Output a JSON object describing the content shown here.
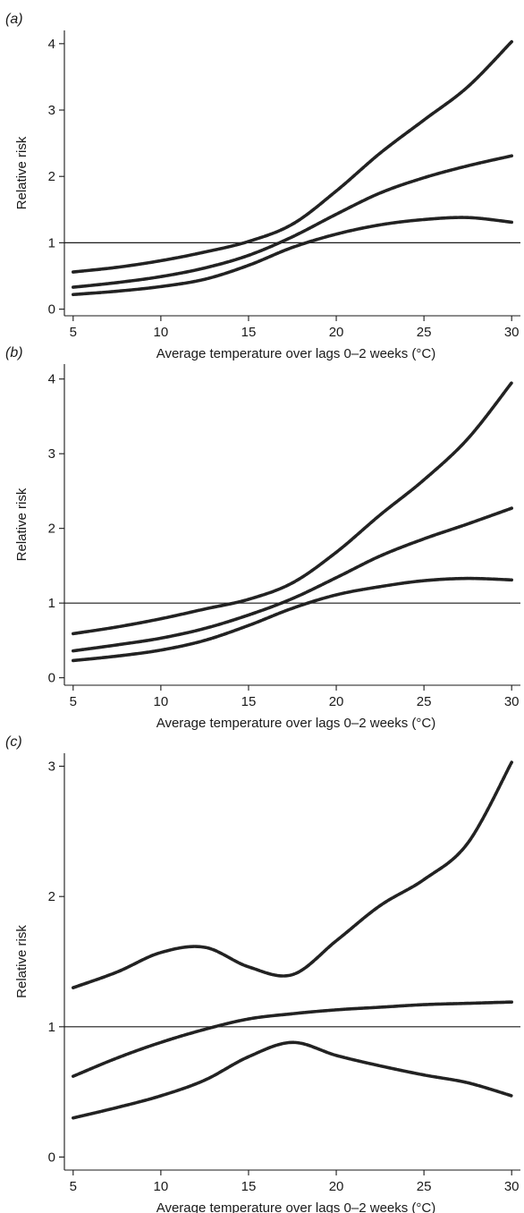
{
  "chart_data": [
    {
      "type": "line",
      "panel_label": "(a)",
      "xlabel": "Average temperature over lags 0–2 weeks (°C)",
      "ylabel": "Relative risk",
      "xlim": [
        4.5,
        30.5
      ],
      "ylim": [
        -0.1,
        4.2
      ],
      "x_ticks": [
        5,
        10,
        15,
        20,
        25,
        30
      ],
      "y_ticks": [
        0,
        1,
        2,
        3,
        4
      ],
      "reference_line_y": 1,
      "grid": false,
      "x": [
        5,
        7.5,
        10,
        12.5,
        15,
        17.5,
        20,
        22.5,
        25,
        27.5,
        30
      ],
      "series": [
        {
          "values": [
            0.56,
            0.63,
            0.73,
            0.86,
            1.02,
            1.28,
            1.78,
            2.35,
            2.85,
            3.35,
            4.03
          ]
        },
        {
          "values": [
            0.33,
            0.4,
            0.49,
            0.62,
            0.81,
            1.09,
            1.43,
            1.75,
            1.98,
            2.16,
            2.31
          ]
        },
        {
          "values": [
            0.22,
            0.27,
            0.34,
            0.45,
            0.66,
            0.93,
            1.13,
            1.27,
            1.35,
            1.38,
            1.31
          ]
        }
      ]
    },
    {
      "type": "line",
      "panel_label": "(b)",
      "xlabel": "Average temperature over lags 0–2 weeks (°C)",
      "ylabel": "Relative risk",
      "xlim": [
        4.5,
        30.5
      ],
      "ylim": [
        -0.1,
        4.2
      ],
      "x_ticks": [
        5,
        10,
        15,
        20,
        25,
        30
      ],
      "y_ticks": [
        0,
        1,
        2,
        3,
        4
      ],
      "reference_line_y": 1,
      "grid": false,
      "x": [
        5,
        7.5,
        10,
        12.5,
        15,
        17.5,
        20,
        22.5,
        25,
        27.5,
        30
      ],
      "series": [
        {
          "values": [
            0.59,
            0.68,
            0.79,
            0.92,
            1.05,
            1.27,
            1.68,
            2.18,
            2.65,
            3.2,
            3.95
          ]
        },
        {
          "values": [
            0.36,
            0.44,
            0.53,
            0.66,
            0.84,
            1.06,
            1.34,
            1.63,
            1.86,
            2.06,
            2.27
          ]
        },
        {
          "values": [
            0.23,
            0.29,
            0.37,
            0.5,
            0.7,
            0.93,
            1.11,
            1.22,
            1.3,
            1.33,
            1.31
          ]
        }
      ]
    },
    {
      "type": "line",
      "panel_label": "(c)",
      "xlabel": "Average temperature over lags 0–2 weeks (°C)",
      "ylabel": "Relative risk",
      "xlim": [
        4.5,
        30.5
      ],
      "ylim": [
        -0.1,
        3.1
      ],
      "x_ticks": [
        5,
        10,
        15,
        20,
        25,
        30
      ],
      "y_ticks": [
        0,
        1,
        2,
        3
      ],
      "reference_line_y": 1,
      "grid": false,
      "x": [
        5,
        7.5,
        10,
        12.5,
        15,
        17.5,
        20,
        22.5,
        25,
        27.5,
        30
      ],
      "series": [
        {
          "values": [
            1.3,
            1.42,
            1.57,
            1.61,
            1.46,
            1.4,
            1.66,
            1.93,
            2.13,
            2.41,
            3.03
          ]
        },
        {
          "values": [
            0.62,
            0.76,
            0.88,
            0.98,
            1.06,
            1.1,
            1.13,
            1.15,
            1.17,
            1.18,
            1.19
          ]
        },
        {
          "values": [
            0.3,
            0.38,
            0.47,
            0.59,
            0.77,
            0.88,
            0.78,
            0.7,
            0.63,
            0.57,
            0.47
          ]
        }
      ]
    }
  ]
}
